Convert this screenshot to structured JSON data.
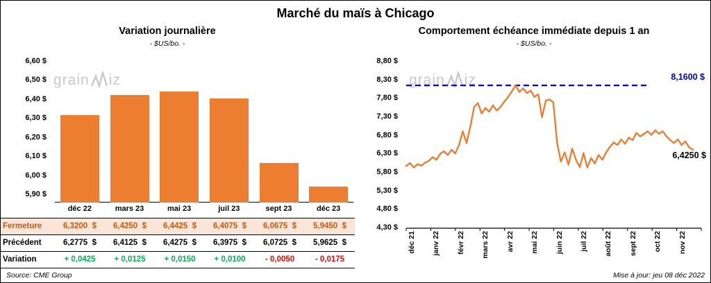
{
  "page": {
    "title": "Marché du maïs à Chicago",
    "source": "Source: CME Group",
    "updated": "Mise à jour: jeu 08 déc 2022",
    "watermark_prefix": "grain",
    "watermark_suffix": "iz"
  },
  "colors": {
    "accent_orange": "#ED7D31",
    "fermeture_bg": "#FBE5D6",
    "fermeture_text": "#C45911",
    "positive_green": "#00B050",
    "negative_red": "#FF0000",
    "reference_blue": "#0000CC",
    "watermark_gray": "#C8C8C8"
  },
  "chart_data": [
    {
      "type": "bar",
      "title": "Variation journalière",
      "subtitle": "- $US/bo. -",
      "categories": [
        "déc 22",
        "mars 23",
        "mai 23",
        "juil 23",
        "sept 23",
        "déc 23"
      ],
      "values": [
        6.32,
        6.425,
        6.4425,
        6.4075,
        6.0675,
        5.945
      ],
      "ylim": [
        5.86,
        6.6
      ],
      "yticks": [
        "6,60 $",
        "6,50 $",
        "6,40 $",
        "6,30 $",
        "6,20 $",
        "6,10 $",
        "6,00 $",
        "5,90 $"
      ],
      "ytick_values": [
        6.6,
        6.5,
        6.4,
        6.3,
        6.2,
        6.1,
        6.0,
        5.9
      ],
      "bar_color": "#ED7D31",
      "grid": false,
      "legend": false
    },
    {
      "type": "line",
      "title": "Comportement échéance immédiate depuis 1 an",
      "subtitle": "- $US/bo. -",
      "x_labels": [
        "déc 21",
        "janv 22",
        "févr 22",
        "mars 22",
        "avr 22",
        "mai 22",
        "juin 22",
        "juil 22",
        "août 22",
        "sept 22",
        "oct 22",
        "nov 22"
      ],
      "ylim": [
        4.3,
        8.8
      ],
      "yticks": [
        "8,80 $",
        "8,30 $",
        "7,80 $",
        "7,30 $",
        "6,80 $",
        "6,30 $",
        "5,80 $",
        "5,30 $",
        "4,80 $",
        "4,30 $"
      ],
      "ytick_values": [
        8.8,
        8.3,
        7.8,
        7.3,
        6.8,
        6.3,
        5.8,
        5.3,
        4.8,
        4.3
      ],
      "line_color": "#ED7D31",
      "reference_line": {
        "value": 8.16,
        "label": "8,1600 $",
        "color": "#0000CC",
        "style": "dashed"
      },
      "end_label": "6,4250 $",
      "grid": false,
      "legend": false,
      "series": [
        {
          "name": "échéance immédiate",
          "values": [
            5.98,
            6.06,
            5.94,
            6.03,
            5.99,
            6.07,
            6.12,
            6.22,
            6.15,
            6.31,
            6.38,
            6.28,
            6.42,
            6.32,
            6.55,
            6.92,
            6.6,
            7.05,
            7.58,
            7.68,
            7.4,
            7.55,
            7.45,
            7.62,
            7.48,
            7.58,
            7.72,
            7.85,
            8.0,
            8.16,
            7.98,
            8.08,
            7.95,
            8.02,
            7.85,
            7.92,
            7.3,
            7.75,
            7.78,
            7.7,
            6.6,
            6.1,
            6.35,
            6.02,
            6.45,
            6.15,
            5.95,
            6.33,
            5.94,
            6.2,
            6.05,
            6.28,
            6.15,
            6.35,
            6.5,
            6.62,
            6.55,
            6.7,
            6.58,
            6.75,
            6.68,
            6.88,
            6.78,
            6.85,
            6.92,
            6.82,
            6.95,
            6.85,
            6.92,
            6.78,
            6.68,
            6.6,
            6.7,
            6.55,
            6.65,
            6.48,
            6.425
          ]
        }
      ]
    }
  ],
  "table": {
    "rows": [
      {
        "label": "Fermeture",
        "style": "fermeture",
        "values": [
          "6,3200  $",
          "6,4250  $",
          "6,4425  $",
          "6,4075  $",
          "6,0675  $",
          "5,9450  $"
        ]
      },
      {
        "label": "Précédent",
        "style": "precedent",
        "values": [
          "6,2775  $",
          "6,4125  $",
          "6,4275  $",
          "6,3975  $",
          "6,0725  $",
          "5,9625  $"
        ]
      },
      {
        "label": "Variation",
        "style": "variation",
        "values": [
          "+ 0,0425",
          "+ 0,0125",
          "+ 0,0150",
          "+ 0,0100",
          "- 0,0050",
          "- 0,0175"
        ]
      }
    ]
  }
}
